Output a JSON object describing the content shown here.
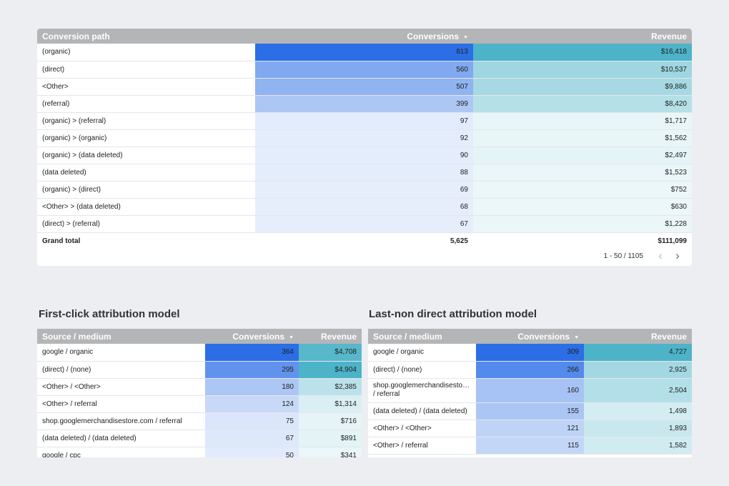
{
  "main": {
    "columns": {
      "path": "Conversion path",
      "conversions": "Conversions",
      "revenue": "Revenue"
    },
    "sort_indicator": "▼",
    "rows": [
      {
        "path": "(organic)",
        "conversions": "813",
        "revenue": "$16,418"
      },
      {
        "path": "(direct)",
        "conversions": "560",
        "revenue": "$10,537"
      },
      {
        "path": "<Other>",
        "conversions": "507",
        "revenue": "$9,886"
      },
      {
        "path": "(referral)",
        "conversions": "399",
        "revenue": "$8,420"
      },
      {
        "path": "(organic) > (referral)",
        "conversions": "97",
        "revenue": "$1,717"
      },
      {
        "path": "(organic) > (organic)",
        "conversions": "92",
        "revenue": "$1,562"
      },
      {
        "path": "(organic) > (data deleted)",
        "conversions": "90",
        "revenue": "$2,497"
      },
      {
        "path": "(data deleted)",
        "conversions": "88",
        "revenue": "$1,523"
      },
      {
        "path": "(organic) > (direct)",
        "conversions": "69",
        "revenue": "$752"
      },
      {
        "path": "<Other> > (data deleted)",
        "conversions": "68",
        "revenue": "$630"
      },
      {
        "path": "(direct) > (referral)",
        "conversions": "67",
        "revenue": "$1,228"
      }
    ],
    "total": {
      "label": "Grand total",
      "conversions": "5,625",
      "revenue": "$111,099"
    },
    "pagination": {
      "text": "1 - 50 / 1105",
      "prev": "‹",
      "next": "›"
    }
  },
  "first_click": {
    "title": "First-click attribution model",
    "columns": {
      "source": "Source / medium",
      "conversions": "Conversions",
      "revenue": "Revenue"
    },
    "rows": [
      {
        "source": "google / organic",
        "conversions": "364",
        "revenue": "$4,708"
      },
      {
        "source": "(direct) / (none)",
        "conversions": "295",
        "revenue": "$4,904"
      },
      {
        "source": "<Other> / <Other>",
        "conversions": "180",
        "revenue": "$2,385"
      },
      {
        "source": "<Other> / referral",
        "conversions": "124",
        "revenue": "$1,314"
      },
      {
        "source": "shop.googlemerchandisestore.com / referral",
        "conversions": "75",
        "revenue": "$716"
      },
      {
        "source": "(data deleted) / (data deleted)",
        "conversions": "67",
        "revenue": "$891"
      },
      {
        "source": "google / cpc",
        "conversions": "50",
        "revenue": "$341"
      }
    ]
  },
  "last_non_direct": {
    "title": "Last-non direct attribution model",
    "columns": {
      "source": "Source / medium",
      "conversions": "Conversions",
      "revenue": "Revenue"
    },
    "rows": [
      {
        "source": "google / organic",
        "conversions": "309",
        "revenue": "4,727"
      },
      {
        "source": "(direct) / (none)",
        "conversions": "266",
        "revenue": "2,925"
      },
      {
        "source": "shop.googlemerchandisestore.com / referral",
        "conversions": "160",
        "revenue": "2,504"
      },
      {
        "source": "(data deleted) / (data deleted)",
        "conversions": "155",
        "revenue": "1,498"
      },
      {
        "source": "<Other> / <Other>",
        "conversions": "121",
        "revenue": "1,893"
      },
      {
        "source": "<Other> / referral",
        "conversions": "115",
        "revenue": "1,582"
      }
    ]
  },
  "colors": {
    "header_bg": "#b4b5b7",
    "conv_heat": "#2b6ee6",
    "rev_heat": "#4db3c8"
  }
}
